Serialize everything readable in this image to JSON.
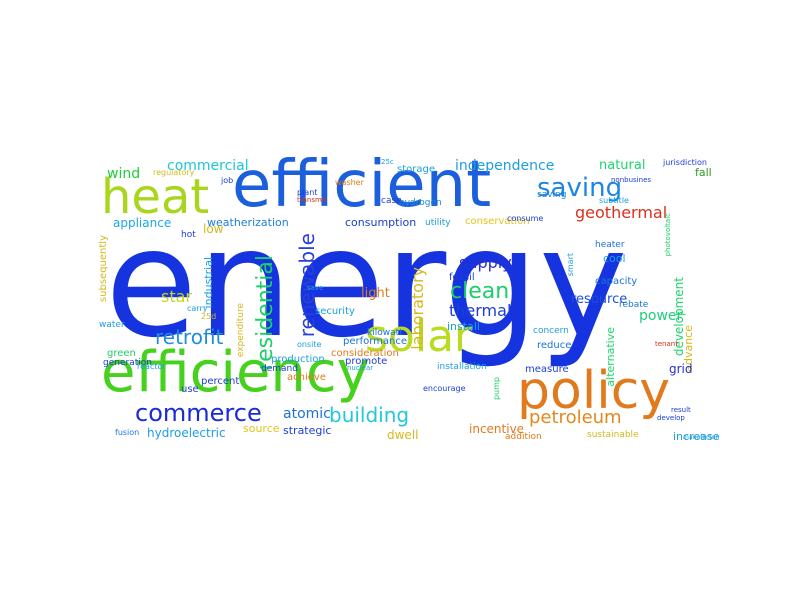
{
  "wordcloud": {
    "words": [
      {
        "text": "energy",
        "color": "#1534e0"
      },
      {
        "text": "efficient",
        "color": "#1c5fdc"
      },
      {
        "text": "efficiency",
        "color": "#45d11c"
      },
      {
        "text": "policy",
        "color": "#e07a1c"
      },
      {
        "text": "heat",
        "color": "#a9d61c"
      },
      {
        "text": "solar",
        "color": "#b7dc22"
      },
      {
        "text": "commerce",
        "color": "#1a2bd6"
      },
      {
        "text": "saving",
        "color": "#1c86e0"
      },
      {
        "text": "petroleum",
        "color": "#e08a1c"
      },
      {
        "text": "building",
        "color": "#24c8d6"
      },
      {
        "text": "residential",
        "color": "#1ccf6a"
      },
      {
        "text": "renewable",
        "color": "#2a3fd8"
      },
      {
        "text": "clean",
        "color": "#1ccf6a"
      },
      {
        "text": "retrofit",
        "color": "#1e8ed8"
      },
      {
        "text": "geothermal",
        "color": "#d8311c"
      },
      {
        "text": "independence",
        "color": "#1c9ee0"
      },
      {
        "text": "commercial",
        "color": "#1cc6d8"
      },
      {
        "text": "thermal",
        "color": "#1c3ed6"
      },
      {
        "text": "natural",
        "color": "#1cd66a"
      },
      {
        "text": "laboratory",
        "color": "#d6b81c"
      },
      {
        "text": "supply",
        "color": "#2a2fd0"
      },
      {
        "text": "star",
        "color": "#c9d61c"
      },
      {
        "text": "wind",
        "color": "#1ccf3a"
      },
      {
        "text": "resource",
        "color": "#1c4ed6"
      },
      {
        "text": "power",
        "color": "#1ccf7a"
      },
      {
        "text": "atomic",
        "color": "#1c72d8"
      },
      {
        "text": "weatherization",
        "color": "#1c7ed6"
      },
      {
        "text": "consumption",
        "color": "#1c3ed0"
      },
      {
        "text": "conservation",
        "color": "#e0c41c"
      },
      {
        "text": "storage",
        "color": "#1c9ee0"
      },
      {
        "text": "hydrogen",
        "color": "#1c8ad6"
      },
      {
        "text": "appliance",
        "color": "#1ca6e0"
      },
      {
        "text": "low",
        "color": "#d6b81c"
      },
      {
        "text": "fall",
        "color": "#2c9a1c"
      },
      {
        "text": "saving",
        "color": "#1c86e0"
      },
      {
        "text": "incentive",
        "color": "#e07a1c"
      },
      {
        "text": "strategic",
        "color": "#1c3ed6"
      },
      {
        "text": "source",
        "color": "#e0c41c"
      },
      {
        "text": "hydroelectric",
        "color": "#1c9ee0"
      },
      {
        "text": "fusion",
        "color": "#1c72d8"
      },
      {
        "text": "dwell",
        "color": "#d6b81c"
      },
      {
        "text": "increase",
        "color": "#1c9ee0"
      },
      {
        "text": "sustainable",
        "color": "#d6b81c"
      },
      {
        "text": "addition",
        "color": "#e07a1c"
      },
      {
        "text": "industrial",
        "color": "#1c9ee0"
      },
      {
        "text": "expenditure",
        "color": "#d6b81c"
      },
      {
        "text": "alternative",
        "color": "#1cd66a"
      },
      {
        "text": "development",
        "color": "#1cd66a"
      },
      {
        "text": "advance",
        "color": "#d6b81c"
      },
      {
        "text": "grid",
        "color": "#2a2fd0"
      },
      {
        "text": "cool",
        "color": "#1c9ee0"
      },
      {
        "text": "capacity",
        "color": "#1c72d8"
      },
      {
        "text": "heater",
        "color": "#1c72d8"
      },
      {
        "text": "reduce",
        "color": "#1c72d8"
      },
      {
        "text": "measure",
        "color": "#1c3ed6"
      },
      {
        "text": "installation",
        "color": "#1c9ee0"
      },
      {
        "text": "install",
        "color": "#1c9ee0"
      },
      {
        "text": "concern",
        "color": "#1c9ee0"
      },
      {
        "text": "fossil",
        "color": "#1c3ed6"
      },
      {
        "text": "light",
        "color": "#e07a1c"
      },
      {
        "text": "security",
        "color": "#1c9ee0"
      },
      {
        "text": "performance",
        "color": "#1c72d8"
      },
      {
        "text": "consideration",
        "color": "#e07a1c"
      },
      {
        "text": "promote",
        "color": "#1c3ed6"
      },
      {
        "text": "production",
        "color": "#1c9ee0"
      },
      {
        "text": "demand",
        "color": "#1c3ed6"
      },
      {
        "text": "achieve",
        "color": "#e07a1c"
      },
      {
        "text": "percent",
        "color": "#1c3ed6"
      },
      {
        "text": "use",
        "color": "#1c3ed6"
      },
      {
        "text": "generation",
        "color": "#1c3ed6"
      },
      {
        "text": "green",
        "color": "#1ccf6a"
      },
      {
        "text": "water",
        "color": "#1c9ee0"
      },
      {
        "text": "hot",
        "color": "#1c3ed6"
      },
      {
        "text": "kilowatt",
        "color": "#1c72d8"
      },
      {
        "text": "subsequently",
        "color": "#d6b81c"
      },
      {
        "text": "rebate",
        "color": "#1c72d8"
      },
      {
        "text": "utility",
        "color": "#1c9ee0"
      },
      {
        "text": "case",
        "color": "#1c3ed6"
      },
      {
        "text": "consume",
        "color": "#1c3ed6"
      },
      {
        "text": "subtitle",
        "color": "#1c9ee0"
      },
      {
        "text": "tenant",
        "color": "#d8311c"
      },
      {
        "text": "onsite",
        "color": "#1c9ee0"
      },
      {
        "text": "carry",
        "color": "#1c9ee0"
      },
      {
        "text": "reactor",
        "color": "#1c9ee0"
      },
      {
        "text": "25d",
        "color": "#d6b81c"
      },
      {
        "text": "smart",
        "color": "#1c9ee0"
      },
      {
        "text": "pump",
        "color": "#1ccf6a"
      },
      {
        "text": "regulatory",
        "color": "#d6b81c"
      },
      {
        "text": "plant",
        "color": "#1c3ed6"
      },
      {
        "text": "washer",
        "color": "#e07a1c"
      },
      {
        "text": "transmit",
        "color": "#d8311c"
      },
      {
        "text": "job",
        "color": "#1c3ed6"
      },
      {
        "text": "save",
        "color": "#1c9ee0"
      },
      {
        "text": "25c",
        "color": "#1c9ee0"
      },
      {
        "text": "jurisdiction",
        "color": "#1c3ed6"
      },
      {
        "text": "photovoltaic",
        "color": "#1ccf6a"
      },
      {
        "text": "nonbusines",
        "color": "#1c3ed6"
      },
      {
        "text": "result",
        "color": "#1c3ed6"
      },
      {
        "text": "develop",
        "color": "#1c3ed6"
      },
      {
        "text": "encourage",
        "color": "#1c3ed6"
      },
      {
        "text": "nuclear",
        "color": "#1c9ee0"
      },
      {
        "text": "manufacture",
        "color": "#1c9ee0"
      }
    ]
  }
}
